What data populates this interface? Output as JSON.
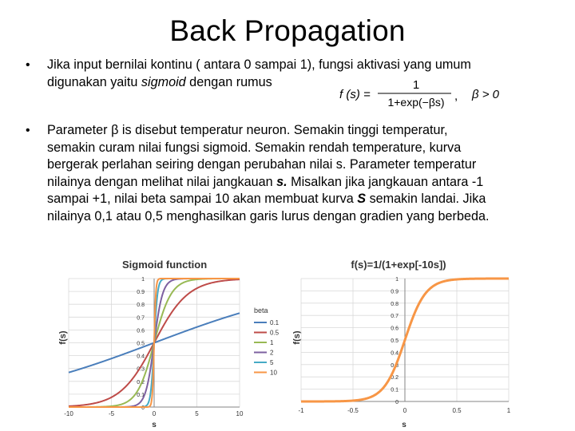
{
  "slide": {
    "title": "Back Propagation",
    "bullet_symbol": "•",
    "bullet1": {
      "line1": "Jika input bernilai kontinu ( antara 0 sampai 1), fungsi aktivasi yang umum",
      "line2_pre": "digunakan yaitu ",
      "line2_em": "sigmoid",
      "line2_post": " dengan rumus"
    },
    "formula": {
      "lhs": "f (s) =",
      "numerator": "1",
      "denominator": "1+exp(−βs)",
      "comma": ",",
      "condition": "β > 0"
    },
    "bullet2": {
      "l1": "Parameter  β  is disebut temperatur neuron. Semakin tinggi temperatur,",
      "l2": "semakin curam nilai fungsi sigmoid. Semakin rendah temperature, kurva",
      "l3": "bergerak perlahan seiring dengan perubahan nilai s. Parameter temperatur",
      "l4_pre": "nilainya  dengan melihat nilai jangkauan ",
      "l4_b": "s.",
      "l4_post": " Misalkan jika jangkauan antara -1",
      "l5_pre": "sampai +1, nilai beta sampai 10 akan membuat kurva ",
      "l5_b": "S",
      "l5_post": " semakin landai. Jika",
      "l6": "nilainya 0,1 atau 0,5 menghasilkan garis lurus dengan gradien yang berbeda."
    }
  },
  "colors": {
    "beta_0_1": "#4a7ebb",
    "beta_0_5": "#be4b48",
    "beta_1": "#98b954",
    "beta_2": "#7d60a0",
    "beta_5": "#46aac5",
    "beta_10": "#f79646",
    "grid": "#d9d9d9",
    "axis": "#868686"
  },
  "chart_data": [
    {
      "type": "line",
      "title": "Sigmoid function",
      "xlabel": "s",
      "ylabel": "f(s)",
      "xlim": [
        -10,
        10
      ],
      "ylim": [
        0,
        1
      ],
      "x_ticks": [
        "-10",
        "-5",
        "0",
        "5",
        "10"
      ],
      "y_ticks": [
        "0",
        "0.1",
        "0.2",
        "0.3",
        "0.4",
        "0.5",
        "0.6",
        "0.7",
        "0.8",
        "0.9",
        "1"
      ],
      "legend_title": "beta",
      "legend_position": "right",
      "series": [
        {
          "name": "0.1",
          "beta": 0.1
        },
        {
          "name": "0.5",
          "beta": 0.5
        },
        {
          "name": "1",
          "beta": 1
        },
        {
          "name": "2",
          "beta": 2
        },
        {
          "name": "5",
          "beta": 5
        },
        {
          "name": "10",
          "beta": 10
        }
      ]
    },
    {
      "type": "line",
      "title": "f(s)=1/(1+exp[-10s])",
      "xlabel": "s",
      "ylabel": "f(s)",
      "xlim": [
        -1,
        1
      ],
      "ylim": [
        0,
        1
      ],
      "x_ticks": [
        "-1",
        "-0.5",
        "0",
        "0.5",
        "1"
      ],
      "y_ticks": [
        "0",
        "0.1",
        "0.2",
        "0.3",
        "0.4",
        "0.5",
        "0.6",
        "0.7",
        "0.8",
        "0.9",
        "1"
      ],
      "series": [
        {
          "beta": 10
        }
      ]
    }
  ]
}
